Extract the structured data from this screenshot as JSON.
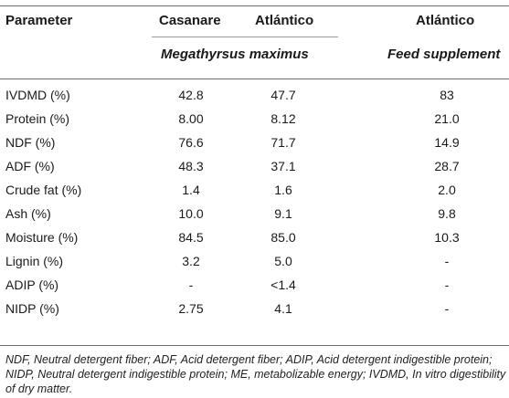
{
  "header": {
    "col_parameter": "Parameter",
    "col_casanare": "Casanare",
    "col_atlantico_1": "Atlántico",
    "col_atlantico_2": "Atlántico",
    "species": "Megathyrsus maximus",
    "feed": "Feed supplement"
  },
  "rows": [
    {
      "parameter": "IVDMD (%)",
      "casanare": "42.8",
      "atlantico": "47.7",
      "feed": "83"
    },
    {
      "parameter": "Protein (%)",
      "casanare": "8.00",
      "atlantico": "8.12",
      "feed": "21.0"
    },
    {
      "parameter": "NDF (%)",
      "casanare": "76.6",
      "atlantico": "71.7",
      "feed": "14.9"
    },
    {
      "parameter": "ADF (%)",
      "casanare": "48.3",
      "atlantico": "37.1",
      "feed": "28.7"
    },
    {
      "parameter": "Crude fat (%)",
      "casanare": "1.4",
      "atlantico": "1.6",
      "feed": "2.0"
    },
    {
      "parameter": "Ash (%)",
      "casanare": "10.0",
      "atlantico": "9.1",
      "feed": "9.8"
    },
    {
      "parameter": "Moisture (%)",
      "casanare": "84.5",
      "atlantico": "85.0",
      "feed": "10.3"
    },
    {
      "parameter": "Lignin (%)",
      "casanare": "3.2",
      "atlantico": "5.0",
      "feed": "-"
    },
    {
      "parameter": "ADIP (%)",
      "casanare": "-",
      "atlantico": "<1.4",
      "feed": "-"
    },
    {
      "parameter": "NIDP (%)",
      "casanare": "2.75",
      "atlantico": "4.1",
      "feed": "-"
    }
  ],
  "footnote": "NDF, Neutral detergent fiber; ADF, Acid detergent fiber; ADIP, Acid detergent indigestible protein; NIDP, Neutral detergent indigestible protein; ME, metabolizable energy; IVDMD, In vitro digestibility of dry matter."
}
